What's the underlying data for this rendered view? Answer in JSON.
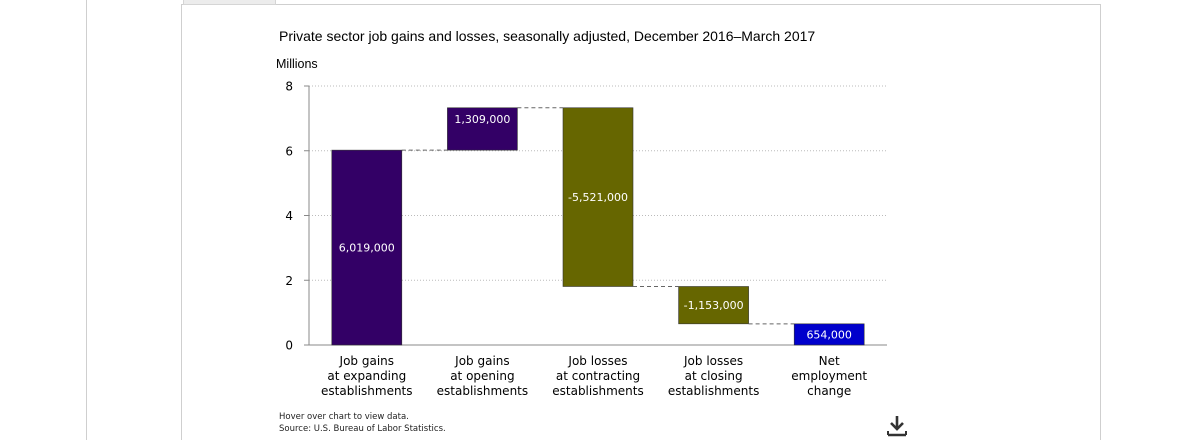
{
  "chart_data": {
    "type": "waterfall",
    "title": "Private sector job gains and losses, seasonally adjusted, December 2016–March 2017",
    "ylabel": "Millions",
    "ylim": [
      0,
      8
    ],
    "yticks": [
      0,
      2,
      4,
      6,
      8
    ],
    "grid": true,
    "categories": [
      [
        "Job gains",
        "at expanding",
        "establishments"
      ],
      [
        "Job gains",
        "at opening",
        "establishments"
      ],
      [
        "Job losses",
        "at contracting",
        "establishments"
      ],
      [
        "Job losses",
        "at closing",
        "establishments"
      ],
      [
        "Net",
        "employment",
        "change"
      ]
    ],
    "values": [
      6019000,
      1309000,
      -5521000,
      -1153000,
      654000
    ],
    "data_labels": [
      "6,019,000",
      "1,309,000",
      "-5,521,000",
      "-1,153,000",
      "654,000"
    ],
    "is_total": [
      false,
      false,
      false,
      false,
      true
    ],
    "colors": {
      "gain": "#330066",
      "loss": "#666600",
      "total": "#0000cc",
      "connector": "#666666",
      "grid": "#bbbbbb",
      "axis": "#888888"
    }
  },
  "footnotes": {
    "hover": "Hover over chart to view data.",
    "source": "Source: U.S. Bureau of Labor Statistics."
  }
}
